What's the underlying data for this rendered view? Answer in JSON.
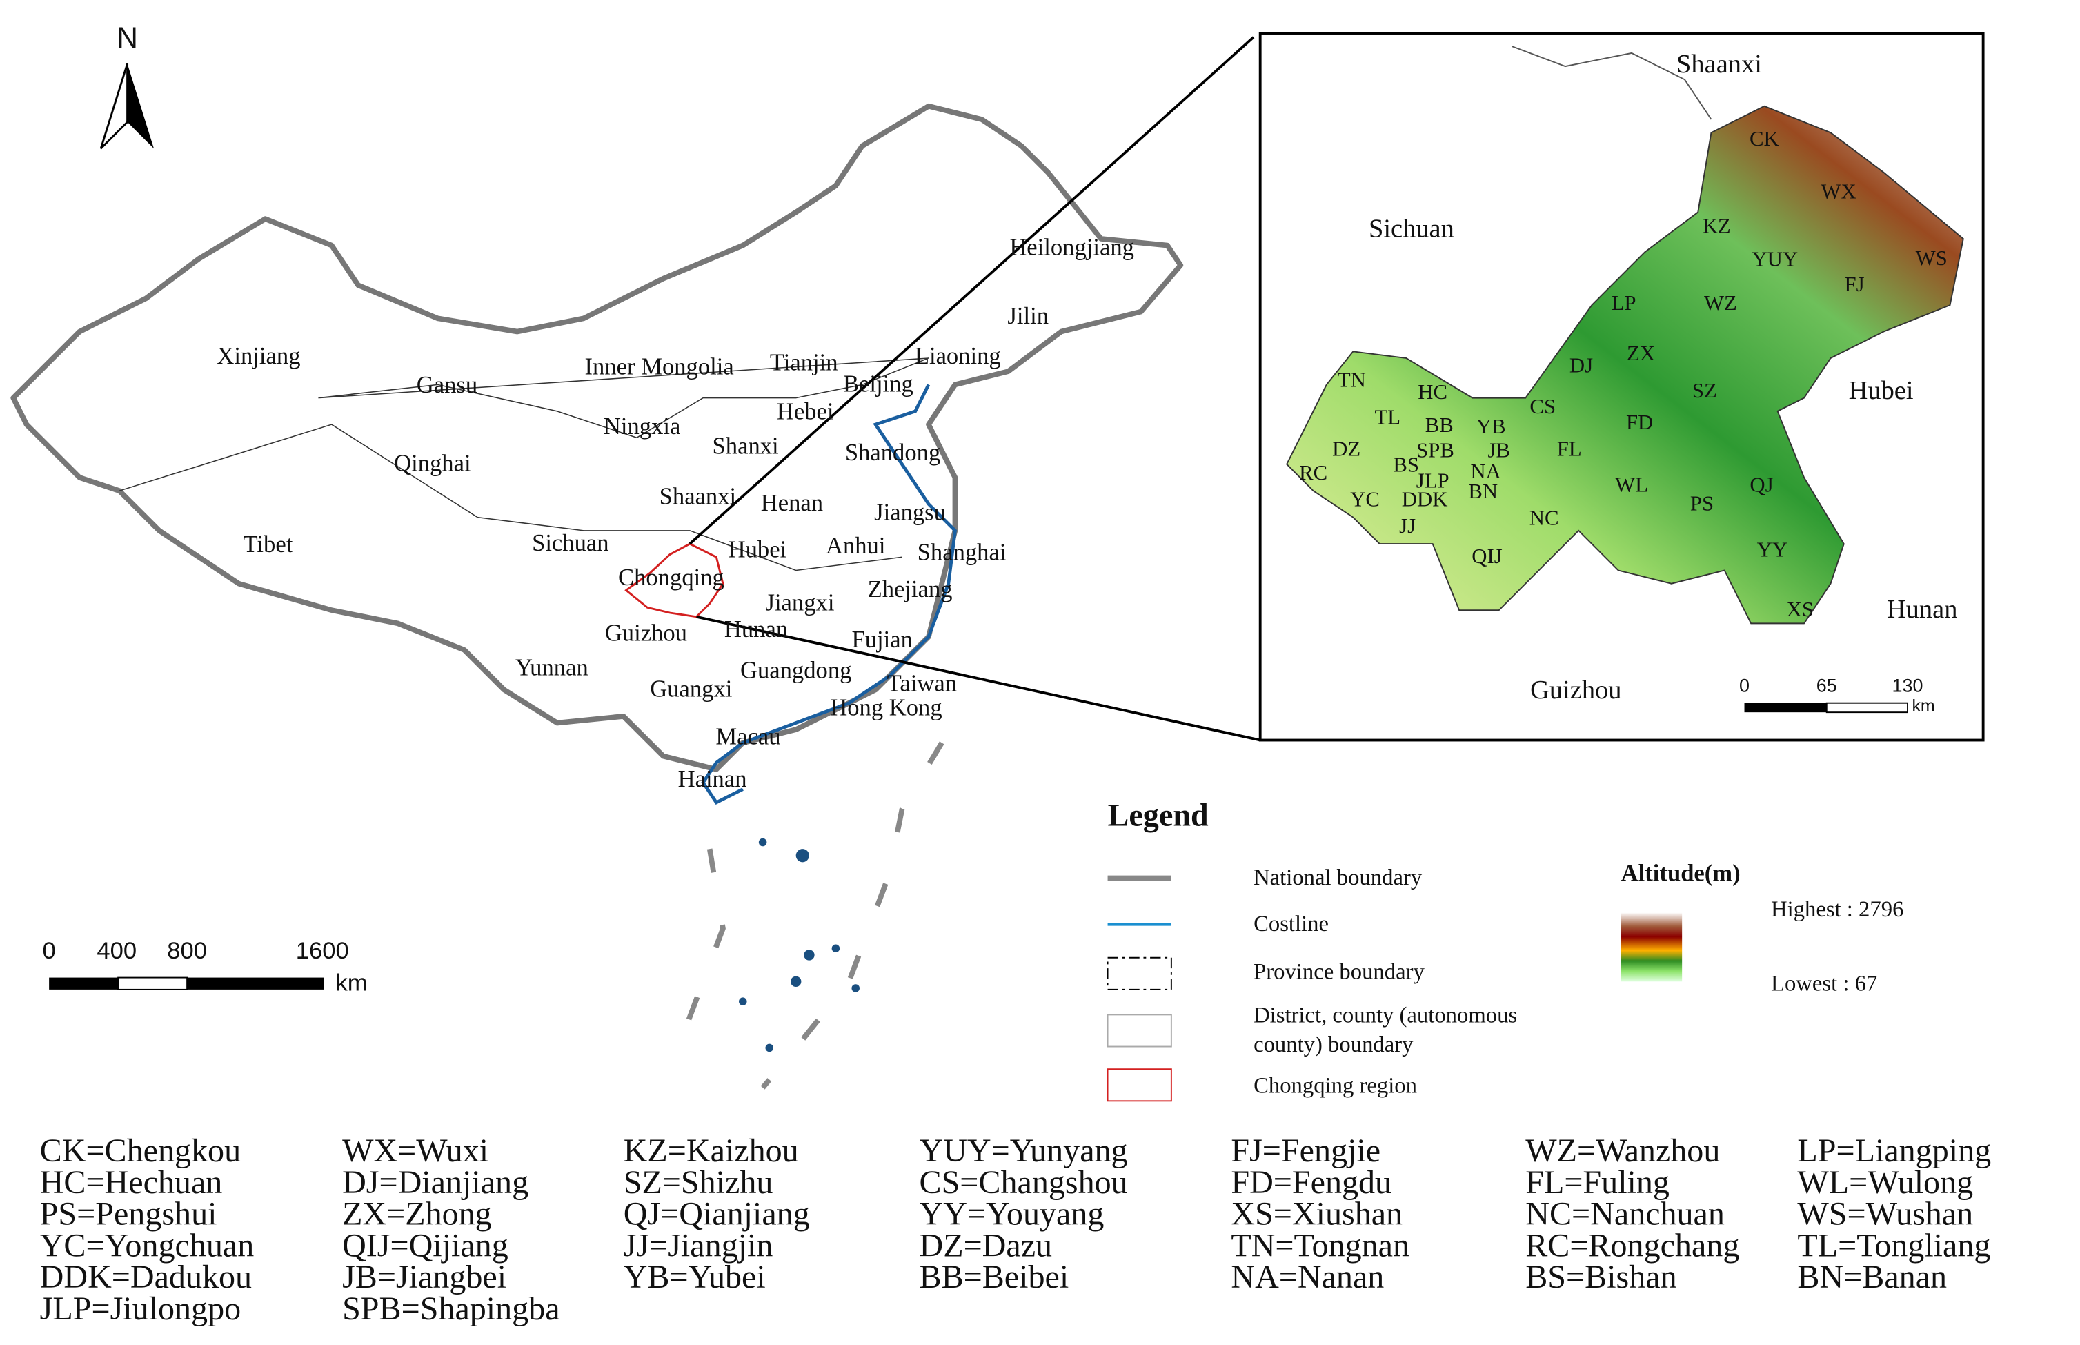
{
  "north_arrow": {
    "label": "N"
  },
  "china_map": {
    "province_labels": [
      "Xinjiang",
      "Gansu",
      "Inner Mongolia",
      "Tianjin",
      "Liaoning",
      "Heilongjiang",
      "Jilin",
      "Beijing",
      "Hebei",
      "Ningxia",
      "Qinghai",
      "Shanxi",
      "Shandong",
      "Shaanxi",
      "Henan",
      "Jiangsu",
      "Tibet",
      "Sichuan",
      "Hubei",
      "Anhui",
      "Shanghai",
      "Chongqing",
      "Zhejiang",
      "Jiangxi",
      "Guizhou",
      "Hunan",
      "Fujian",
      "Yunnan",
      "Guangdong",
      "Taiwan",
      "Guangxi",
      "Hong Kong",
      "Macau",
      "Hainan"
    ],
    "scale_bar": {
      "ticks": [
        0,
        400,
        800,
        1600
      ],
      "unit": "km"
    }
  },
  "inset_map": {
    "neighbor_labels": [
      "Shaanxi",
      "Sichuan",
      "Hubei",
      "Hunan",
      "Guizhou"
    ],
    "district_labels": [
      "CK",
      "WX",
      "KZ",
      "YUY",
      "WS",
      "FJ",
      "LP",
      "WZ",
      "ZX",
      "DJ",
      "TN",
      "HC",
      "SZ",
      "CS",
      "TL",
      "BB",
      "YB",
      "FD",
      "DZ",
      "SPB",
      "JB",
      "FL",
      "RC",
      "BS",
      "NA",
      "JLP",
      "WL",
      "QJ",
      "PS",
      "YC",
      "DDK",
      "BN",
      "NC",
      "JJ",
      "QIJ",
      "YY",
      "XS"
    ],
    "scale_bar": {
      "ticks": [
        0,
        65,
        130
      ],
      "unit": "km"
    }
  },
  "legend": {
    "title": "Legend",
    "items": [
      "National boundary",
      "Costline",
      "Province boundary",
      [
        "District, county (autonomous",
        "county)  boundary"
      ],
      "Chongqing region"
    ],
    "altitude": {
      "title": "Altitude(m)",
      "highest": "Highest : 2796",
      "lowest": "Lowest : 67"
    }
  },
  "abbreviation_key": [
    "CK=Chengkou",
    "WX=Wuxi",
    "KZ=Kaizhou",
    "YUY=Yunyang",
    "FJ=Fengjie",
    "WZ=Wanzhou",
    "LP=Liangping",
    "HC=Hechuan",
    "DJ=Dianjiang",
    "SZ=Shizhu",
    "CS=Changshou",
    "FD=Fengdu",
    "FL=Fuling",
    "WL=Wulong",
    "PS=Pengshui",
    "ZX=Zhong",
    "QJ=Qianjiang",
    "YY=Youyang",
    "XS=Xiushan",
    "NC=Nanchuan",
    "WS=Wushan",
    "YC=Yongchuan",
    "QIJ=Qijiang",
    "JJ=Jiangjin",
    "DZ=Dazu",
    "TN=Tongnan",
    "RC=Rongchang",
    "TL=Tongliang",
    "DDK=Dadukou",
    "JB=Jiangbei",
    "YB=Yubei",
    "BB=Beibei",
    "NA=Nanan",
    "BS=Bishan",
    "BN=Banan",
    "JLP=Jiulongpo",
    "SPB=Shapingba"
  ]
}
